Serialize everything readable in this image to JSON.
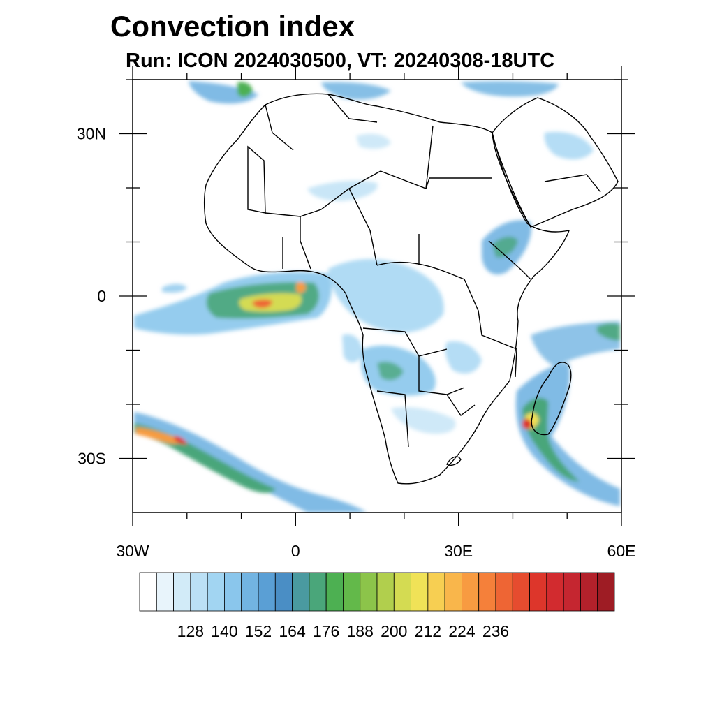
{
  "title": "Convection index",
  "subtitle": "Run: ICON 2024030500,  VT: 20240308-18UTC",
  "map": {
    "projection": "cylindrical-equidistant",
    "lon_range": [
      -30,
      60
    ],
    "lat_range": [
      -40,
      40
    ],
    "lat_ticks": [
      {
        "value": 30,
        "label": "30N"
      },
      {
        "value": 0,
        "label": "0"
      },
      {
        "value": -30,
        "label": "30S"
      }
    ],
    "lon_ticks": [
      {
        "value": -30,
        "label": "30W"
      },
      {
        "value": 0,
        "label": "0"
      },
      {
        "value": 30,
        "label": "30E"
      },
      {
        "value": 60,
        "label": "60E"
      }
    ]
  },
  "colorbar": {
    "colors": [
      "#ffffff",
      "#e8f4fb",
      "#d2ebf8",
      "#bbe0f5",
      "#a2d5f2",
      "#8ac6ec",
      "#72b4e2",
      "#5a9fd5",
      "#4a8ec5",
      "#4a9aa0",
      "#4aa67a",
      "#4db052",
      "#63b94a",
      "#8cc44a",
      "#b1cf4d",
      "#d4db52",
      "#f0e257",
      "#f7cf52",
      "#f9b64b",
      "#f89b41",
      "#f5803a",
      "#ee6534",
      "#e64c2f",
      "#dd362b",
      "#d22b2f",
      "#c52630",
      "#b3212b",
      "#9e1c24"
    ],
    "labels": [
      "128",
      "140",
      "152",
      "164",
      "176",
      "188",
      "200",
      "212",
      "224",
      "236"
    ]
  }
}
